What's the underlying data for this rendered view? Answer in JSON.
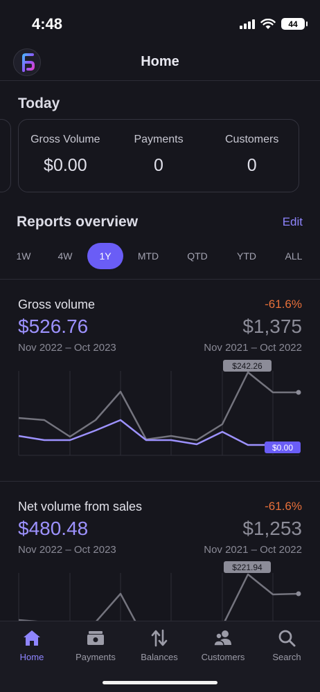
{
  "status_bar": {
    "time": "4:48",
    "battery": "44"
  },
  "header": {
    "title": "Home"
  },
  "today": {
    "title": "Today",
    "stats": [
      {
        "label": "Gross Volume",
        "value": "$0.00"
      },
      {
        "label": "Payments",
        "value": "0"
      },
      {
        "label": "Customers",
        "value": "0"
      }
    ]
  },
  "reports": {
    "title": "Reports overview",
    "edit_label": "Edit",
    "periods": [
      "1W",
      "4W",
      "1Y",
      "MTD",
      "QTD",
      "YTD",
      "ALL"
    ],
    "active_period": "1Y"
  },
  "metrics": [
    {
      "name": "Gross volume",
      "change": "-61.6%",
      "current_value": "$526.76",
      "previous_value": "$1,375",
      "current_range": "Nov 2022 – Oct 2023",
      "previous_range": "Nov 2021 – Oct 2022",
      "callout_previous": "$242.26",
      "callout_current": "$0.00"
    },
    {
      "name": "Net volume from sales",
      "change": "-61.6%",
      "current_value": "$480.48",
      "previous_value": "$1,253",
      "current_range": "Nov 2022 – Oct 2023",
      "previous_range": "Nov 2021 – Oct 2022",
      "callout_previous": "$221.94"
    }
  ],
  "tab_bar": {
    "items": [
      {
        "label": "Home",
        "icon": "home-icon",
        "active": true
      },
      {
        "label": "Payments",
        "icon": "wallet-icon",
        "active": false
      },
      {
        "label": "Balances",
        "icon": "transfer-arrows-icon",
        "active": false
      },
      {
        "label": "Customers",
        "icon": "customers-icon",
        "active": false
      },
      {
        "label": "Search",
        "icon": "search-icon",
        "active": false
      }
    ]
  },
  "colors": {
    "accent": "#6a5df6",
    "current_series": "#9d92ff",
    "previous_series": "#74747e",
    "negative_change": "#e8703a",
    "background": "#16161d"
  }
}
